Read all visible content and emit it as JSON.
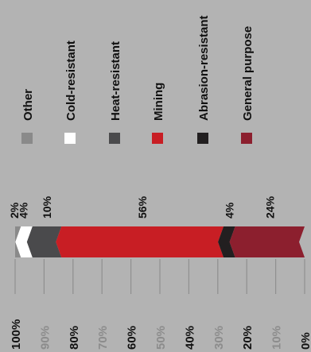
{
  "chart_data": {
    "type": "bar",
    "stacked": true,
    "orientation": "horizontal-rotated",
    "title": "",
    "xlabel": "",
    "ylabel": "",
    "xlim": [
      0,
      100
    ],
    "ticks": [
      "100%",
      "90%",
      "80%",
      "70%",
      "60%",
      "50%",
      "40%",
      "30%",
      "20%",
      "10%",
      "0%"
    ],
    "grid": true,
    "legend_position": "top",
    "series": [
      {
        "name": "Other",
        "value": 2,
        "label": "2%",
        "color": "#8a8a8a"
      },
      {
        "name": "Cold-resistant",
        "value": 4,
        "label": "4%",
        "color": "#ffffff"
      },
      {
        "name": "Heat-resistant",
        "value": 10,
        "label": "10%",
        "color": "#4a4a4c"
      },
      {
        "name": "Mining",
        "value": 56,
        "label": "56%",
        "color": "#c81e24"
      },
      {
        "name": "Abrasion-resistant",
        "value": 4,
        "label": "4%",
        "color": "#221f20"
      },
      {
        "name": "General purpose",
        "value": 24,
        "label": "24%",
        "color": "#8c1f2e"
      }
    ]
  },
  "colors": {
    "background": "#b3b3b3",
    "gridline": "#8f8f8f",
    "text": "#111111",
    "faint_tick": "#8c8c8c"
  }
}
